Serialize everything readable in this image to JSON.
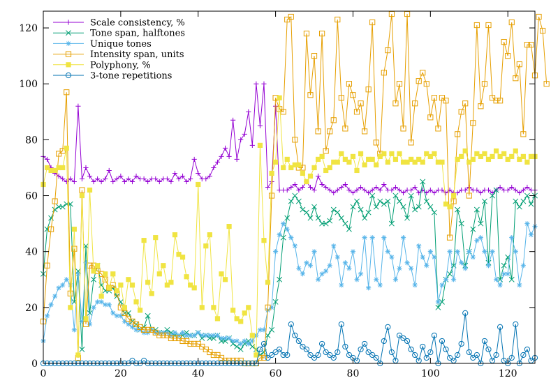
{
  "chart_data": {
    "type": "line",
    "title": "",
    "xlabel": "",
    "ylabel": "",
    "xlim": [
      0,
      127
    ],
    "ylim": [
      0,
      126
    ],
    "x_ticks": [
      0,
      20,
      40,
      60,
      80,
      100,
      120
    ],
    "y_ticks": [
      0,
      20,
      40,
      60,
      80,
      100,
      120
    ],
    "grid": false,
    "legend_position": "top-left",
    "series": [
      {
        "name": "Scale consistency, %",
        "color": "#9400d3",
        "marker": "plus",
        "values": [
          74,
          73,
          70,
          68,
          67,
          66,
          65,
          66,
          65,
          92,
          66,
          70,
          67,
          65,
          66,
          65,
          66,
          69,
          65,
          66,
          67,
          65,
          66,
          65,
          67,
          66,
          66,
          65,
          66,
          66,
          65,
          66,
          66,
          65,
          68,
          66,
          67,
          65,
          66,
          73,
          68,
          66,
          66,
          67,
          70,
          72,
          74,
          77,
          74,
          87,
          73,
          80,
          82,
          90,
          78,
          100,
          85,
          100,
          63,
          65,
          92,
          62,
          62,
          62,
          63,
          64,
          62,
          63,
          65,
          63,
          62,
          67,
          64,
          63,
          62,
          61,
          62,
          63,
          64,
          62,
          61,
          62,
          63,
          62,
          61,
          62,
          63,
          62,
          64,
          62,
          62,
          63,
          62,
          61,
          62,
          62,
          63,
          61,
          62,
          61,
          62,
          61,
          62,
          62,
          61,
          62,
          61,
          61,
          62,
          62,
          63,
          62,
          62,
          61,
          62,
          62,
          61,
          62,
          63,
          62,
          62,
          63,
          62,
          61,
          62,
          63,
          62,
          62
        ]
      },
      {
        "name": "Tone span, halftones",
        "color": "#009e73",
        "marker": "cross",
        "values": [
          32,
          48,
          52,
          55,
          56,
          56,
          57,
          57,
          22,
          33,
          5,
          42,
          18,
          30,
          35,
          28,
          26,
          26,
          27,
          24,
          22,
          18,
          18,
          15,
          14,
          12,
          13,
          17,
          12,
          12,
          11,
          11,
          12,
          11,
          10,
          10,
          10,
          11,
          10,
          10,
          11,
          9,
          10,
          9,
          9,
          10,
          8,
          8,
          9,
          7,
          6,
          5,
          7,
          8,
          6,
          5,
          3,
          4,
          10,
          12,
          22,
          30,
          45,
          52,
          58,
          60,
          58,
          55,
          54,
          52,
          56,
          52,
          50,
          50,
          51,
          55,
          54,
          52,
          50,
          48,
          56,
          58,
          55,
          52,
          54,
          60,
          56,
          58,
          57,
          58,
          50,
          60,
          58,
          56,
          52,
          60,
          55,
          56,
          65,
          58,
          56,
          54,
          20,
          22,
          30,
          32,
          35,
          55,
          50,
          35,
          40,
          48,
          55,
          50,
          58,
          36,
          60,
          62,
          30,
          35,
          38,
          30,
          58,
          56,
          58,
          60,
          57,
          60
        ]
      },
      {
        "name": "Unique tones",
        "color": "#56b4e9",
        "marker": "star",
        "values": [
          8,
          17,
          21,
          24,
          27,
          28,
          30,
          28,
          12,
          32,
          15,
          36,
          14,
          20,
          22,
          22,
          21,
          21,
          18,
          17,
          17,
          15,
          14,
          13,
          12,
          12,
          11,
          11,
          12,
          11,
          11,
          11,
          11,
          10,
          11,
          10,
          11,
          10,
          10,
          10,
          11,
          10,
          10,
          10,
          10,
          10,
          9,
          9,
          9,
          8,
          8,
          7,
          8,
          7,
          8,
          10,
          12,
          12,
          19,
          20,
          40,
          46,
          50,
          48,
          45,
          42,
          34,
          32,
          36,
          35,
          40,
          30,
          32,
          33,
          35,
          42,
          38,
          28,
          36,
          34,
          40,
          30,
          32,
          45,
          27,
          45,
          30,
          28,
          45,
          40,
          38,
          30,
          34,
          45,
          36,
          34,
          28,
          42,
          38,
          35,
          40,
          38,
          22,
          28,
          30,
          40,
          30,
          40,
          36,
          34,
          40,
          38,
          44,
          45,
          40,
          35,
          40,
          30,
          28,
          32,
          32,
          45,
          40,
          28,
          35,
          50,
          46,
          49
        ]
      },
      {
        "name": "Intensity span, units",
        "color": "#e69f00",
        "marker": "square",
        "values": [
          15,
          35,
          48,
          58,
          75,
          76,
          97,
          25,
          41,
          2,
          62,
          14,
          35,
          35,
          33,
          32,
          30,
          27,
          28,
          25,
          20,
          18,
          16,
          15,
          14,
          13,
          12,
          12,
          12,
          11,
          10,
          10,
          10,
          9,
          9,
          9,
          8,
          8,
          7,
          7,
          7,
          6,
          5,
          4,
          3,
          3,
          2,
          1,
          1,
          1,
          1,
          1,
          0,
          0,
          0,
          0,
          2,
          2,
          20,
          60,
          95,
          91,
          90,
          123,
          124,
          80,
          70,
          70,
          118,
          96,
          110,
          83,
          118,
          76,
          83,
          87,
          123,
          95,
          84,
          100,
          96,
          90,
          93,
          83,
          98,
          122,
          79,
          75,
          104,
          112,
          125,
          93,
          100,
          84,
          125,
          79,
          93,
          101,
          104,
          100,
          88,
          95,
          84,
          95,
          94,
          45,
          58,
          82,
          90,
          93,
          60,
          86,
          121,
          92,
          100,
          121,
          95,
          94,
          94,
          115,
          110,
          122,
          102,
          107,
          82,
          114,
          114,
          103,
          124,
          119,
          100
        ]
      },
      {
        "name": "Polyphony, %",
        "color": "#f0e442",
        "marker": "filled-square",
        "values": [
          64,
          70,
          69,
          69,
          70,
          70,
          77,
          20,
          48,
          3,
          60,
          16,
          62,
          33,
          35,
          24,
          32,
          27,
          32,
          26,
          28,
          20,
          30,
          28,
          22,
          19,
          44,
          29,
          25,
          45,
          32,
          35,
          28,
          29,
          46,
          39,
          38,
          31,
          28,
          27,
          64,
          20,
          42,
          46,
          20,
          16,
          32,
          30,
          49,
          19,
          16,
          15,
          18,
          20,
          10,
          3,
          78,
          44,
          29,
          68,
          72,
          95,
          70,
          73,
          70,
          71,
          71,
          68,
          65,
          67,
          70,
          73,
          74,
          69,
          70,
          72,
          72,
          75,
          73,
          72,
          74,
          69,
          75,
          71,
          73,
          73,
          71,
          74,
          75,
          72,
          75,
          73,
          75,
          72,
          72,
          73,
          72,
          73,
          72,
          75,
          74,
          75,
          72,
          72,
          57,
          56,
          60,
          73,
          74,
          76,
          72,
          73,
          75,
          74,
          75,
          73,
          74,
          76,
          74,
          75,
          73,
          74,
          76,
          73,
          74,
          72,
          74,
          74
        ]
      },
      {
        "name": "3-tone repetitions",
        "color": "#0072b2",
        "marker": "circle",
        "values": [
          0,
          0,
          0,
          0,
          0,
          0,
          0,
          0,
          0,
          0,
          0,
          0,
          0,
          0,
          0,
          0,
          0,
          0,
          0,
          0,
          0,
          0,
          0,
          1,
          0,
          0,
          1,
          0,
          0,
          0,
          0,
          0,
          0,
          0,
          0,
          0,
          0,
          0,
          0,
          0,
          0,
          0,
          0,
          0,
          0,
          0,
          0,
          0,
          0,
          0,
          0,
          0,
          0,
          0,
          0,
          0,
          5,
          7,
          2,
          3,
          4,
          5,
          3,
          3,
          14,
          10,
          8,
          6,
          5,
          3,
          2,
          3,
          7,
          4,
          3,
          2,
          4,
          14,
          6,
          3,
          2,
          1,
          5,
          7,
          4,
          3,
          2,
          0,
          8,
          13,
          4,
          1,
          10,
          9,
          8,
          5,
          3,
          1,
          6,
          2,
          4,
          10,
          0,
          8,
          5,
          2,
          1,
          3,
          7,
          18,
          4,
          2,
          3,
          0,
          8,
          5,
          1,
          3,
          13,
          1,
          0,
          2,
          14,
          0,
          3,
          5,
          1,
          2
        ]
      }
    ]
  }
}
